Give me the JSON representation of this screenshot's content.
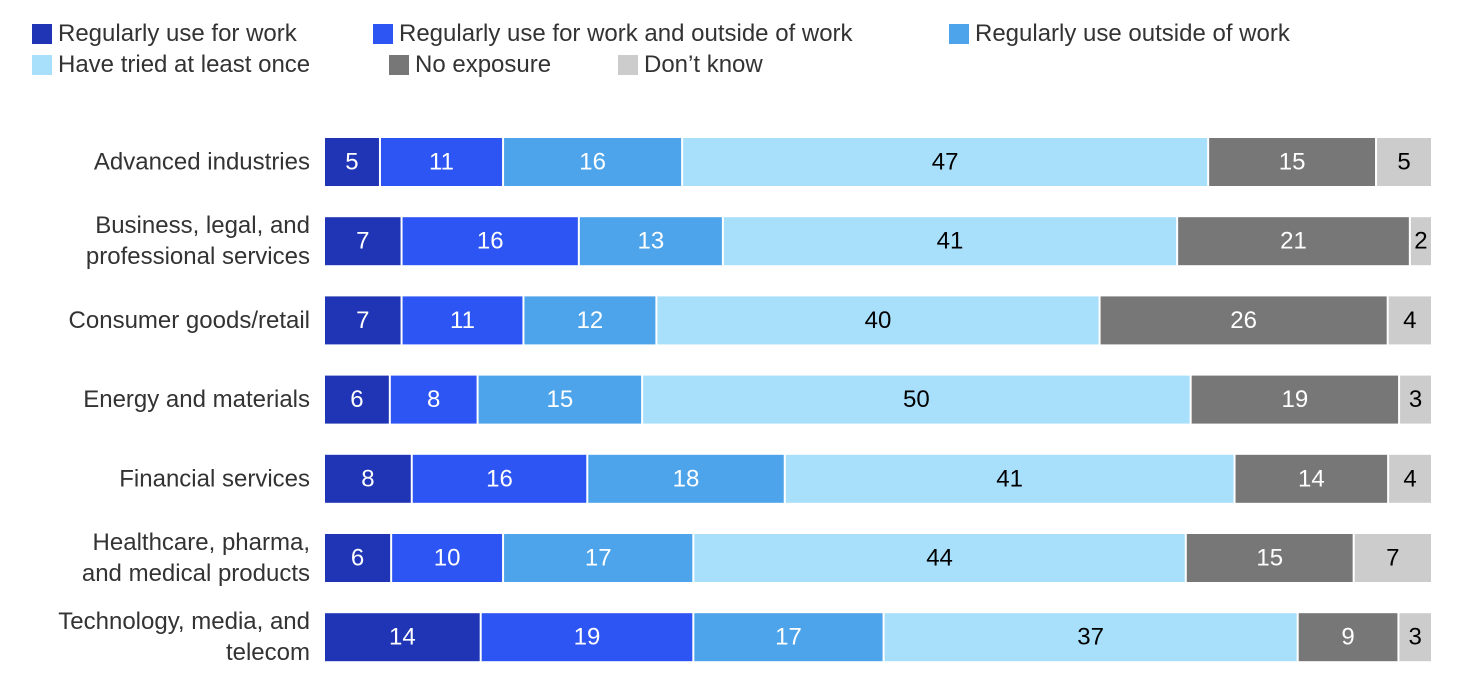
{
  "legend": [
    {
      "label": "Regularly use for work",
      "color": "#1f35b5"
    },
    {
      "label": "Regularly use for work and outside of work",
      "color": "#2d55f3"
    },
    {
      "label": "Regularly use outside of work",
      "color": "#4da4ea"
    },
    {
      "label": "Have tried at least once",
      "color": "#a8e0fb"
    },
    {
      "label": "No exposure",
      "color": "#777777"
    },
    {
      "label": "Don’t know",
      "color": "#cccccc"
    }
  ],
  "chart_data": {
    "type": "bar",
    "orientation": "horizontal",
    "stacked": true,
    "categories": [
      [
        "Advanced industries"
      ],
      [
        "Business, legal, and",
        "professional services"
      ],
      [
        "Consumer goods/retail"
      ],
      [
        "Energy and materials"
      ],
      [
        "Financial services"
      ],
      [
        "Healthcare, pharma,",
        "and medical products"
      ],
      [
        "Technology, media, and",
        "telecom"
      ]
    ],
    "series": [
      {
        "name": "Regularly use for work",
        "color": "#1f35b5",
        "label_color": "#ffffff",
        "values": [
          5,
          7,
          7,
          6,
          8,
          6,
          14
        ]
      },
      {
        "name": "Regularly use for work and outside of work",
        "color": "#2d55f3",
        "label_color": "#ffffff",
        "values": [
          11,
          16,
          11,
          8,
          16,
          10,
          19
        ]
      },
      {
        "name": "Regularly use outside of work",
        "color": "#4da4ea",
        "label_color": "#ffffff",
        "values": [
          16,
          13,
          12,
          15,
          18,
          17,
          17
        ]
      },
      {
        "name": "Have tried at least once",
        "color": "#a8e0fb",
        "label_color": "#000000",
        "values": [
          47,
          41,
          40,
          50,
          41,
          44,
          37
        ]
      },
      {
        "name": "No exposure",
        "color": "#777777",
        "label_color": "#ffffff",
        "values": [
          15,
          21,
          26,
          19,
          14,
          15,
          9
        ]
      },
      {
        "name": "Don’t know",
        "color": "#cccccc",
        "label_color": "#000000",
        "values": [
          5,
          2,
          4,
          3,
          4,
          7,
          3
        ]
      }
    ],
    "legend_position": "top",
    "grid": false
  }
}
